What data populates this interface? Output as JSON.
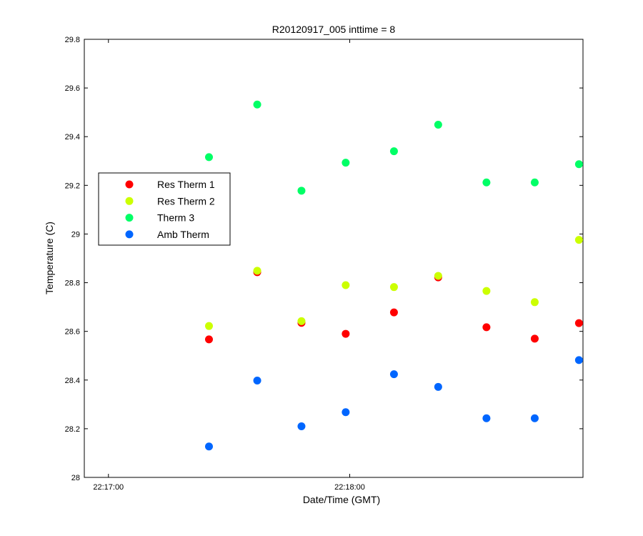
{
  "chart_data": {
    "type": "scatter",
    "title": "R20120917_005 inttime = 8",
    "xlabel": "Date/Time (GMT)",
    "ylabel": "Temperature (C)",
    "x_axis": {
      "kind": "time",
      "range": [
        "22:16:54",
        "22:18:58"
      ],
      "ticks": [
        "22:17:00",
        "22:18:00"
      ]
    },
    "ylim": [
      28,
      29.8
    ],
    "y_ticks": [
      "28",
      "28.2",
      "28.4",
      "28.6",
      "28.8",
      "29",
      "29.2",
      "29.4",
      "29.6",
      "29.8"
    ],
    "x": [
      "22:17:25",
      "22:17:37",
      "22:17:48",
      "22:17:59",
      "22:18:11",
      "22:18:22",
      "22:18:34",
      "22:18:46",
      "22:18:57"
    ],
    "series": [
      {
        "name": "Res Therm 1",
        "color": "#ff0000",
        "values": [
          28.567,
          28.843,
          28.635,
          28.59,
          28.678,
          28.822,
          28.617,
          28.57,
          28.634
        ]
      },
      {
        "name": "Res Therm 2",
        "color": "#ccff00",
        "values": [
          28.622,
          28.849,
          28.642,
          28.79,
          28.782,
          28.828,
          28.766,
          28.72,
          28.976
        ]
      },
      {
        "name": "Therm 3",
        "color": "#00ff66",
        "values": [
          29.316,
          29.532,
          29.178,
          29.293,
          29.34,
          29.449,
          29.212,
          29.212,
          29.287
        ]
      },
      {
        "name": "Amb Therm",
        "color": "#0066ff",
        "values": [
          28.127,
          28.398,
          28.21,
          28.268,
          28.424,
          28.372,
          28.243,
          28.243,
          28.482
        ]
      }
    ],
    "grid": false,
    "legend_position": "left"
  }
}
